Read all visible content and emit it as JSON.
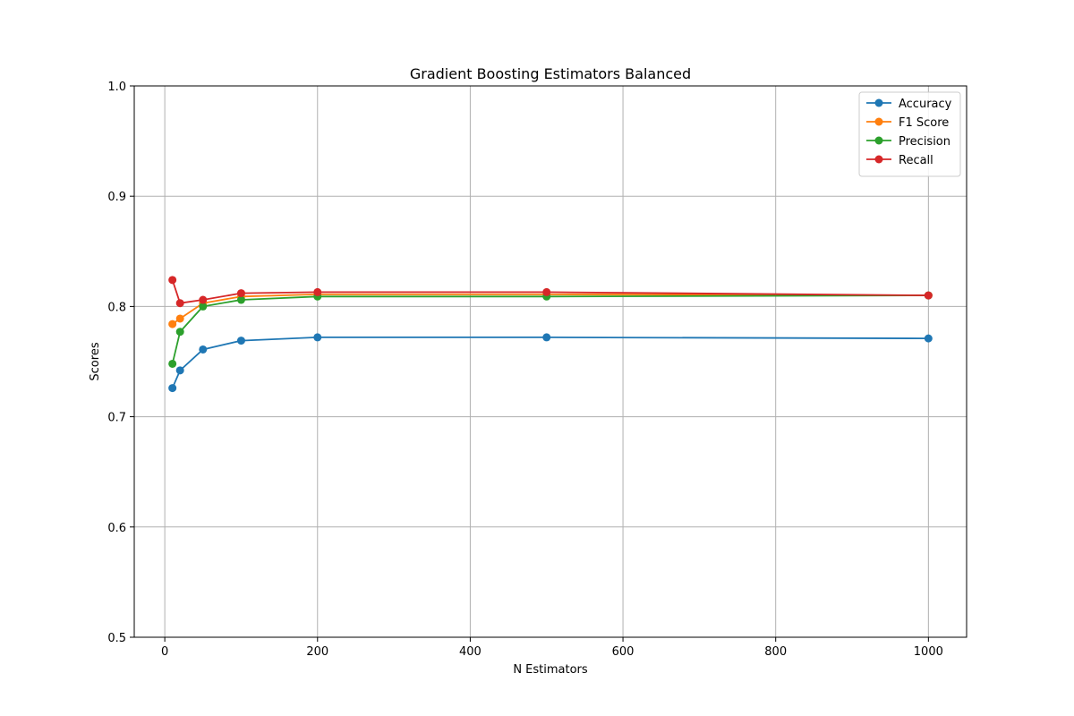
{
  "chart_data": {
    "type": "line",
    "title": "Gradient Boosting Estimators Balanced",
    "xlabel": "N Estimators",
    "ylabel": "Scores",
    "xlim": [
      -40,
      1050
    ],
    "ylim": [
      0.5,
      1.0
    ],
    "xticks": [
      0,
      200,
      400,
      600,
      800,
      1000
    ],
    "yticks": [
      0.5,
      0.6,
      0.7,
      0.8,
      0.9,
      1.0
    ],
    "xtick_labels": [
      "0",
      "200",
      "400",
      "600",
      "800",
      "1000"
    ],
    "ytick_labels": [
      "0.5",
      "0.6",
      "0.7",
      "0.8",
      "0.9",
      "1.0"
    ],
    "grid": true,
    "legend_position": "top-right",
    "x": [
      10,
      20,
      50,
      100,
      200,
      500,
      1000
    ],
    "series": [
      {
        "name": "Accuracy",
        "color": "#1f77b4",
        "values": [
          0.726,
          0.742,
          0.761,
          0.769,
          0.772,
          0.772,
          0.771
        ]
      },
      {
        "name": "F1 Score",
        "color": "#ff7f0e",
        "values": [
          0.784,
          0.789,
          0.803,
          0.809,
          0.811,
          0.811,
          0.81
        ]
      },
      {
        "name": "Precision",
        "color": "#2ca02c",
        "values": [
          0.748,
          0.777,
          0.8,
          0.806,
          0.809,
          0.809,
          0.81
        ]
      },
      {
        "name": "Recall",
        "color": "#d62728",
        "values": [
          0.824,
          0.803,
          0.806,
          0.812,
          0.813,
          0.813,
          0.81
        ]
      }
    ]
  }
}
